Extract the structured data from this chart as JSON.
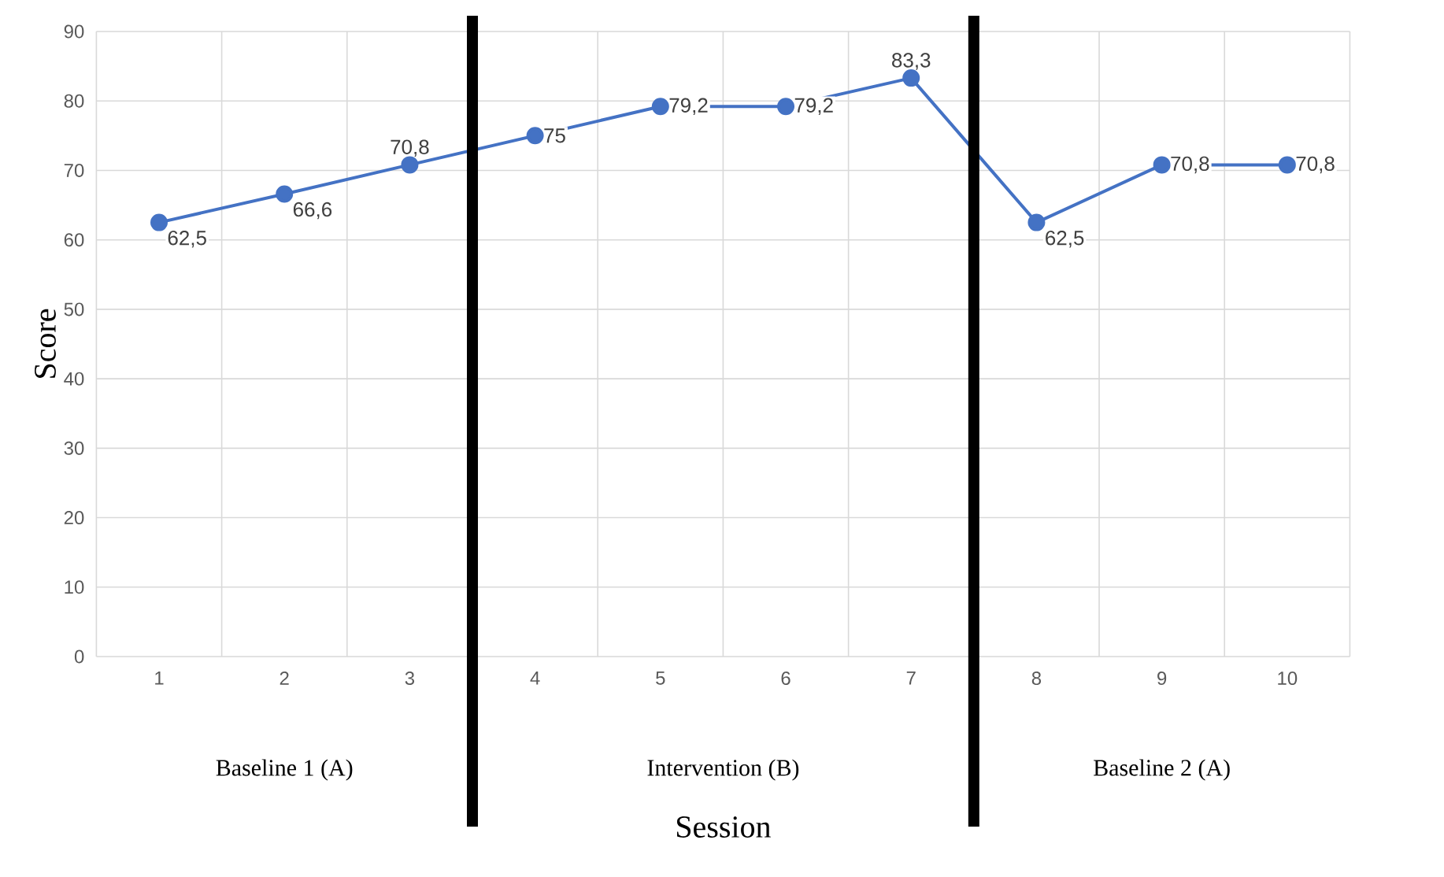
{
  "chart_data": {
    "type": "line",
    "xlabel": "Session",
    "ylabel": "Score",
    "categories": [
      "1",
      "2",
      "3",
      "4",
      "5",
      "6",
      "7",
      "8",
      "9",
      "10"
    ],
    "values": [
      62.5,
      66.6,
      70.8,
      75,
      79.2,
      79.2,
      83.3,
      62.5,
      70.8,
      70.8
    ],
    "value_labels": [
      "62,5",
      "66,6",
      "70,8",
      "75",
      "79,2",
      "79,2",
      "83,3",
      "62,5",
      "70,8",
      "70,8"
    ],
    "color": "#4472c4",
    "marker": "circle",
    "ylim": [
      0,
      90
    ],
    "yticks": [
      0,
      10,
      20,
      30,
      40,
      50,
      60,
      70,
      80,
      90
    ],
    "grid": true,
    "annotations": [
      "Baseline 1 (A)",
      "Intervention (B)",
      "Baseline 2 (A)"
    ]
  }
}
